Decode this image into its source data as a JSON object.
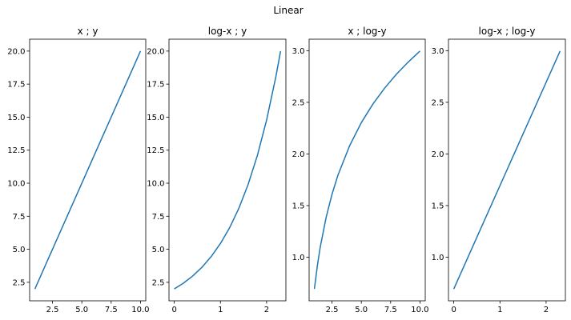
{
  "figure": {
    "suptitle": "Linear"
  },
  "style": {
    "line_color": "#1f77b4",
    "axis_color": "#000000",
    "background": "#ffffff"
  },
  "chart_data": [
    {
      "type": "line",
      "title": "x ; y",
      "xlabel": "",
      "ylabel": "",
      "xlim": [
        0.55,
        10.45
      ],
      "ylim": [
        1.1,
        20.9
      ],
      "xticks": [
        2.5,
        5.0,
        7.5,
        10.0
      ],
      "xtick_labels": [
        "2.5",
        "5.0",
        "7.5",
        "10.0"
      ],
      "yticks": [
        2.5,
        5.0,
        7.5,
        10.0,
        12.5,
        15.0,
        17.5,
        20.0
      ],
      "ytick_labels": [
        "2.5",
        "5.0",
        "7.5",
        "10.0",
        "12.5",
        "15.0",
        "17.5",
        "20.0"
      ],
      "grid": false,
      "series": [
        {
          "x": [
            1,
            2,
            3,
            4,
            5,
            6,
            7,
            8,
            9,
            10
          ],
          "y": [
            2,
            4,
            6,
            8,
            10,
            12,
            14,
            16,
            18,
            20
          ]
        }
      ]
    },
    {
      "type": "line",
      "title": "log-x ; y",
      "xlabel": "",
      "ylabel": "",
      "xlim": [
        -0.115,
        2.418
      ],
      "ylim": [
        1.1,
        20.9
      ],
      "xticks": [
        0,
        1,
        2
      ],
      "xtick_labels": [
        "0",
        "1",
        "2"
      ],
      "yticks": [
        2.5,
        5.0,
        7.5,
        10.0,
        12.5,
        15.0,
        17.5,
        20.0
      ],
      "ytick_labels": [
        "2.5",
        "5.0",
        "7.5",
        "10.0",
        "12.5",
        "15.0",
        "17.5",
        "20.0"
      ],
      "grid": false,
      "series": [
        {
          "x": [
            0.0,
            0.2,
            0.4,
            0.6,
            0.8,
            1.0,
            1.2,
            1.4,
            1.6,
            1.8,
            2.0,
            2.2,
            2.303
          ],
          "y": [
            2.0,
            2.44,
            2.98,
            3.64,
            4.45,
            5.44,
            6.64,
            8.11,
            9.91,
            12.1,
            14.78,
            18.05,
            20.0
          ]
        }
      ]
    },
    {
      "type": "line",
      "title": "x ; log-y",
      "xlabel": "",
      "ylabel": "",
      "xlim": [
        0.55,
        10.45
      ],
      "ylim": [
        0.578,
        3.111
      ],
      "xticks": [
        2.5,
        5.0,
        7.5,
        10.0
      ],
      "xtick_labels": [
        "2.5",
        "5.0",
        "7.5",
        "10.0"
      ],
      "yticks": [
        1.0,
        1.5,
        2.0,
        2.5,
        3.0
      ],
      "ytick_labels": [
        "1.0",
        "1.5",
        "2.0",
        "2.5",
        "3.0"
      ],
      "grid": false,
      "series": [
        {
          "x": [
            1.0,
            1.25,
            1.5,
            2.0,
            2.5,
            3.0,
            4.0,
            5.0,
            6.0,
            7.0,
            8.0,
            9.0,
            10.0
          ],
          "y": [
            0.693,
            0.916,
            1.099,
            1.386,
            1.609,
            1.792,
            2.079,
            2.303,
            2.485,
            2.639,
            2.773,
            2.89,
            2.996
          ]
        }
      ]
    },
    {
      "type": "line",
      "title": "log-x ; log-y",
      "xlabel": "",
      "ylabel": "",
      "xlim": [
        -0.115,
        2.418
      ],
      "ylim": [
        0.578,
        3.111
      ],
      "xticks": [
        0,
        1,
        2
      ],
      "xtick_labels": [
        "0",
        "1",
        "2"
      ],
      "yticks": [
        1.0,
        1.5,
        2.0,
        2.5,
        3.0
      ],
      "ytick_labels": [
        "1.0",
        "1.5",
        "2.0",
        "2.5",
        "3.0"
      ],
      "grid": false,
      "series": [
        {
          "x": [
            0.0,
            2.303
          ],
          "y": [
            0.693,
            2.996
          ]
        }
      ]
    }
  ]
}
